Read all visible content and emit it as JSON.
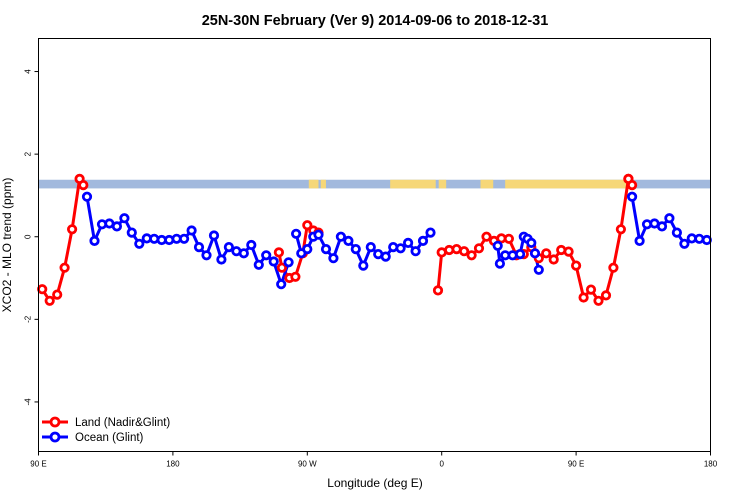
{
  "chart_data": {
    "type": "line",
    "title": "25N-30N February (Ver 9)   2014-09-06 to 2018-12-31",
    "xlabel": "Longitude (deg E)",
    "ylabel": "XCO2 - MLO trend (ppm)",
    "xlim": [
      90,
      540
    ],
    "ylim": [
      -5.2,
      4.8
    ],
    "x_ticks": [
      {
        "value": 90,
        "label": "90 E"
      },
      {
        "value": 180,
        "label": "180"
      },
      {
        "value": 270,
        "label": "90 W"
      },
      {
        "value": 360,
        "label": "0"
      },
      {
        "value": 450,
        "label": "90 E"
      },
      {
        "value": 540,
        "label": "180"
      }
    ],
    "y_ticks": [
      {
        "value": -4,
        "label": "-4"
      },
      {
        "value": -2,
        "label": "-2"
      },
      {
        "value": 0,
        "label": "0"
      },
      {
        "value": 2,
        "label": "2"
      },
      {
        "value": 4,
        "label": "4"
      }
    ],
    "legend": {
      "position": "bottom-left"
    },
    "series": [
      {
        "name": "Land (Nadir&Glint)",
        "color": "#ff0000",
        "segments": [
          {
            "x": [
              92.5,
              97.5,
              102.5,
              107.5,
              112.5,
              117.5,
              120
            ],
            "y": [
              -1.27,
              -1.55,
              -1.4,
              -0.75,
              0.18,
              1.4,
              1.25
            ]
          },
          {
            "x": [
              251,
              253,
              258,
              262,
              267,
              270,
              274,
              277.5
            ],
            "y": [
              -0.38,
              -0.75,
              -1.0,
              -0.97,
              -0.4,
              0.28,
              0.15,
              0.1
            ]
          },
          {
            "x": [
              357.5,
              360,
              365,
              370,
              375,
              380,
              385,
              390,
              395,
              400,
              405,
              410,
              415,
              420,
              425,
              430,
              435,
              440,
              445,
              450,
              455,
              460,
              465,
              470,
              475,
              480,
              485
            ],
            "y": [
              -1.3,
              -0.38,
              -0.32,
              -0.3,
              -0.35,
              -0.45,
              -0.28,
              0.0,
              -0.1,
              -0.04,
              -0.05,
              -0.45,
              -0.42,
              -0.25,
              -0.52,
              -0.4,
              -0.55,
              -0.32,
              -0.36,
              -0.7,
              -1.47,
              -1.28,
              -1.55,
              -1.42,
              -0.75,
              0.18,
              1.4
            ]
          },
          {
            "x": [
              485,
              487.5
            ],
            "y": [
              1.4,
              1.25
            ]
          }
        ]
      },
      {
        "name": "Ocean (Glint)",
        "color": "#0000ff",
        "segments": [
          {
            "x": [
              122.5,
              127.5,
              132.5,
              137.5,
              142.5,
              147.5,
              152.5,
              157.5,
              162.5,
              167.5,
              172.5,
              177.5,
              182.5,
              187.5,
              192.5,
              197.5,
              202.5,
              207.5,
              212.5,
              217.5,
              222.5,
              227.5,
              232.5,
              237.5,
              242.5,
              247.5,
              252.5,
              257.5
            ],
            "y": [
              0.97,
              -0.1,
              0.3,
              0.32,
              0.25,
              0.45,
              0.1,
              -0.17,
              -0.04,
              -0.05,
              -0.08,
              -0.08,
              -0.05,
              -0.05,
              0.15,
              -0.25,
              -0.45,
              0.03,
              -0.55,
              -0.25,
              -0.35,
              -0.4,
              -0.2,
              -0.68,
              -0.45,
              -0.6,
              -1.15,
              -0.62
            ]
          },
          {
            "x": [
              262.5,
              266,
              270,
              274,
              277.5,
              282.5,
              287.5,
              292.5,
              297.5,
              302.5,
              307.5,
              312.5,
              317.5,
              322.5,
              327.5,
              332.5,
              337.5,
              342.5,
              347.5,
              352.5
            ],
            "y": [
              0.07,
              -0.4,
              -0.3,
              0.0,
              0.05,
              -0.3,
              -0.52,
              0.0,
              -0.1,
              -0.3,
              -0.7,
              -0.25,
              -0.42,
              -0.48,
              -0.25,
              -0.28,
              -0.15,
              -0.35,
              -0.1,
              0.1
            ]
          },
          {
            "x": [
              397.5,
              399,
              402.5,
              407.5,
              412.5,
              415,
              417.5,
              420,
              422.5,
              425
            ],
            "y": [
              -0.22,
              -0.65,
              -0.45,
              -0.45,
              -0.42,
              0.0,
              -0.05,
              -0.15,
              -0.4,
              -0.8
            ]
          },
          {
            "x": [
              487.5,
              492.5,
              497.5,
              502.5,
              507.5,
              512.5,
              517.5,
              522.5,
              527.5,
              532.5,
              537.5
            ],
            "y": [
              0.97,
              -0.1,
              0.3,
              0.32,
              0.25,
              0.45,
              0.1,
              -0.17,
              -0.04,
              -0.05,
              -0.08
            ]
          }
        ]
      }
    ],
    "surface_band": {
      "y_range": [
        1.17,
        1.38
      ],
      "ocean_color": "#a2b9dd",
      "land_color": "#f6d778",
      "land_x": [
        [
          271,
          277.5
        ],
        [
          279,
          282.5
        ],
        [
          325.5,
          356
        ],
        [
          358,
          363
        ],
        [
          386,
          394.5
        ],
        [
          402.5,
          487.5
        ]
      ]
    }
  }
}
